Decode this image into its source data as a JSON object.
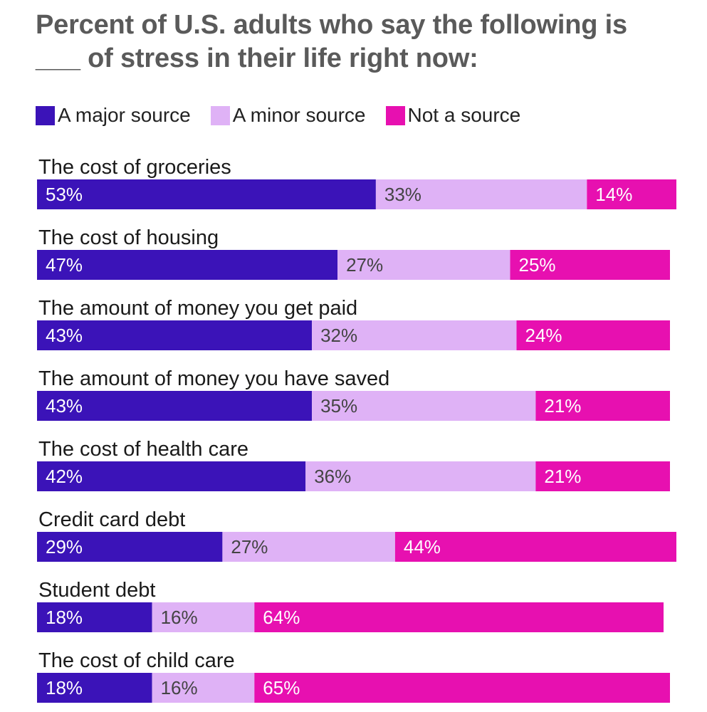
{
  "chart_data": {
    "type": "bar",
    "orientation": "horizontal",
    "stacked": true,
    "title": "Percent of U.S. adults who say the following is ___ of stress in their life right now:",
    "xlabel": "",
    "ylabel": "",
    "xlim": [
      0,
      100
    ],
    "legend_position": "top-left",
    "categories": [
      "The cost of groceries",
      "The cost of housing",
      "The amount of money you get paid",
      "The amount of money you have saved",
      "The cost of health care",
      "Credit card debt",
      "Student debt",
      "The cost of child care"
    ],
    "series": [
      {
        "name": "A major source",
        "color": "#3b13b8",
        "text_color": "#ffffff",
        "values": [
          53,
          47,
          43,
          43,
          42,
          29,
          18,
          18
        ]
      },
      {
        "name": "A minor source",
        "color": "#dfb2f6",
        "text_color": "#444444",
        "values": [
          33,
          27,
          32,
          35,
          36,
          27,
          16,
          16
        ]
      },
      {
        "name": "Not a source",
        "color": "#e710b0",
        "text_color": "#ffffff",
        "values": [
          14,
          25,
          24,
          21,
          21,
          44,
          64,
          65
        ]
      }
    ]
  }
}
